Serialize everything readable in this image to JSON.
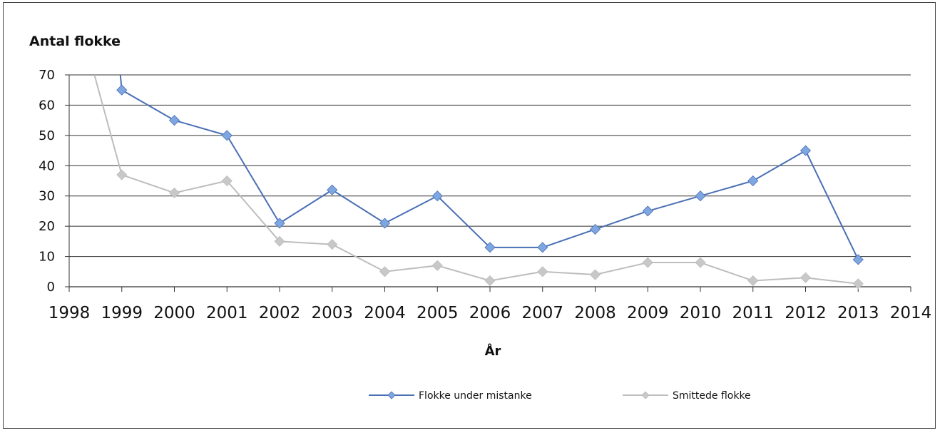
{
  "chart_data": {
    "type": "line",
    "title": "",
    "ylabel": "Antal flokke",
    "xlabel": "År",
    "xlim": [
      1998,
      2014
    ],
    "ylim": [
      0,
      70
    ],
    "x_ticks": [
      "1998",
      "1999",
      "2000",
      "2001",
      "2002",
      "2003",
      "2004",
      "2005",
      "2006",
      "2007",
      "2008",
      "2009",
      "2010",
      "2011",
      "2012",
      "2013",
      "2014"
    ],
    "y_ticks": [
      "0",
      "10",
      "20",
      "30",
      "40",
      "50",
      "60",
      "70"
    ],
    "grid": "horizontal",
    "legend_position": "bottom",
    "series": [
      {
        "name": "Flokke under mistanke",
        "color": "#4a6fb5",
        "marker_color": "#7ea6e0",
        "marker": "diamond",
        "x": [
          1999,
          2000,
          2001,
          2002,
          2003,
          2004,
          2005,
          2006,
          2007,
          2008,
          2009,
          2010,
          2011,
          2012,
          2013
        ],
        "y": [
          65,
          55,
          50,
          21,
          32,
          21,
          30,
          13,
          13,
          19,
          25,
          30,
          35,
          45,
          9
        ],
        "line_enters_from_above": true
      },
      {
        "name": "Smittede flokke",
        "color": "#bdbdbd",
        "marker_color": "#c8c8c8",
        "marker": "diamond",
        "x": [
          1999,
          2000,
          2001,
          2002,
          2003,
          2004,
          2005,
          2006,
          2007,
          2008,
          2009,
          2010,
          2011,
          2012,
          2013
        ],
        "y": [
          37,
          31,
          35,
          15,
          14,
          5,
          7,
          2,
          5,
          4,
          8,
          8,
          2,
          3,
          1
        ],
        "line_enters_from_above": true
      }
    ]
  }
}
